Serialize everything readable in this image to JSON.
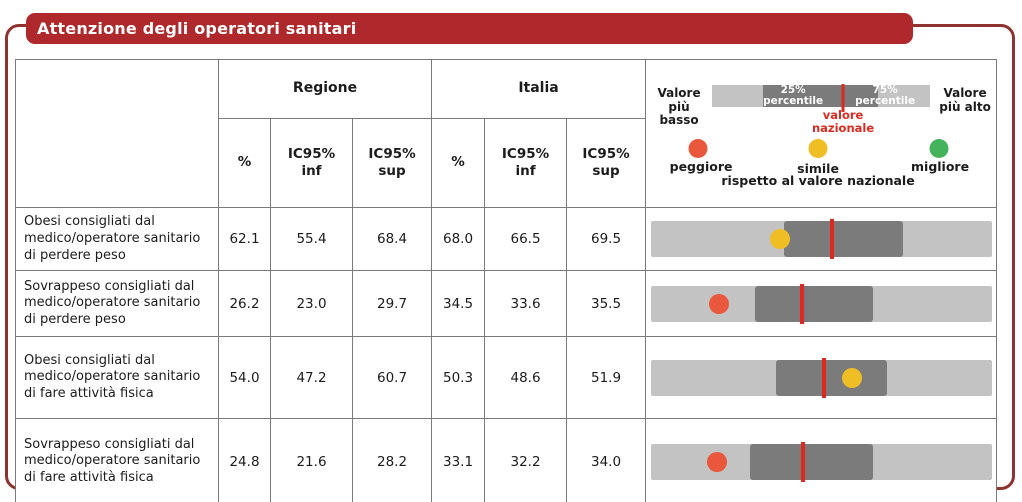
{
  "header": {
    "title": "Attenzione degli operatori sanitari"
  },
  "table": {
    "group_headers": [
      "Regione",
      "Italia"
    ],
    "sub_headers": [
      "%",
      "IC95%\ninf",
      "IC95%\nsup",
      "%",
      "IC95%\ninf",
      "IC95%\nsup"
    ]
  },
  "legend": {
    "lowest": "Valore\npiù basso",
    "highest": "Valore\npiù alto",
    "p25": "25%\npercentile",
    "p75": "75%\npercentile",
    "national": "valore\nnazionale",
    "worse": "peggiore",
    "similar": "simile",
    "better": "migliore",
    "vs_national": "rispetto al valore nazionale"
  },
  "colors": {
    "band_red": "#AF282B",
    "border_red": "#8E3330",
    "table_border": "#7a7a7a",
    "bar_light": "#C3C3C3",
    "bar_dark": "#7B7B7B",
    "national_line": "#DD2A21",
    "worse": "#E9573D",
    "similar": "#EFBD24",
    "better": "#44B35C"
  },
  "chart_data": {
    "type": "table",
    "title": "Attenzione degli operatori sanitari",
    "columns": [
      "Regione %",
      "Regione IC95% inf",
      "Regione IC95% sup",
      "Italia %",
      "Italia IC95% inf",
      "Italia IC95% sup"
    ],
    "note": "each row also has a percentile strip chart: light band = full range, dark band = 25th-75th percentile, red line = national value, dot colored by comparison vs national value; *_pct values are % of bar width",
    "rows": [
      {
        "label": "Obesi consigliati dal medico/operatore sanitario di perdere peso",
        "regione": {
          "pct": "62.1",
          "ic_inf": "55.4",
          "ic_sup": "68.4"
        },
        "italia": {
          "pct": "68.0",
          "ic_inf": "66.5",
          "ic_sup": "69.5"
        },
        "bar": {
          "band_start_pct": 38.9,
          "band_end_pct": 74.0,
          "national_pct": 53.2,
          "dot_pct": 37.7,
          "dot": "similar"
        }
      },
      {
        "label": "Sovrappeso consigliati dal medico/operatore sanitario di perdere peso",
        "regione": {
          "pct": "26.2",
          "ic_inf": "23.0",
          "ic_sup": "29.7"
        },
        "italia": {
          "pct": "34.5",
          "ic_inf": "33.6",
          "ic_sup": "35.5"
        },
        "bar": {
          "band_start_pct": 30.5,
          "band_end_pct": 65.1,
          "national_pct": 44.3,
          "dot_pct": 19.9,
          "dot": "worse"
        }
      },
      {
        "label": "Obesi consigliati dal medico/operatore sanitario di fare attività fisica",
        "regione": {
          "pct": "54.0",
          "ic_inf": "47.2",
          "ic_sup": "60.7"
        },
        "italia": {
          "pct": "50.3",
          "ic_inf": "48.6",
          "ic_sup": "51.9"
        },
        "bar": {
          "band_start_pct": 36.5,
          "band_end_pct": 69.3,
          "national_pct": 50.6,
          "dot_pct": 58.8,
          "dot": "similar"
        }
      },
      {
        "label": "Sovrappeso consigliati dal medico/operatore sanitario di fare attività fisica",
        "regione": {
          "pct": "24.8",
          "ic_inf": "21.6",
          "ic_sup": "28.2"
        },
        "italia": {
          "pct": "33.1",
          "ic_inf": "32.2",
          "ic_sup": "34.0"
        },
        "bar": {
          "band_start_pct": 29.0,
          "band_end_pct": 65.2,
          "national_pct": 44.7,
          "dot_pct": 19.3,
          "dot": "worse"
        }
      }
    ]
  }
}
